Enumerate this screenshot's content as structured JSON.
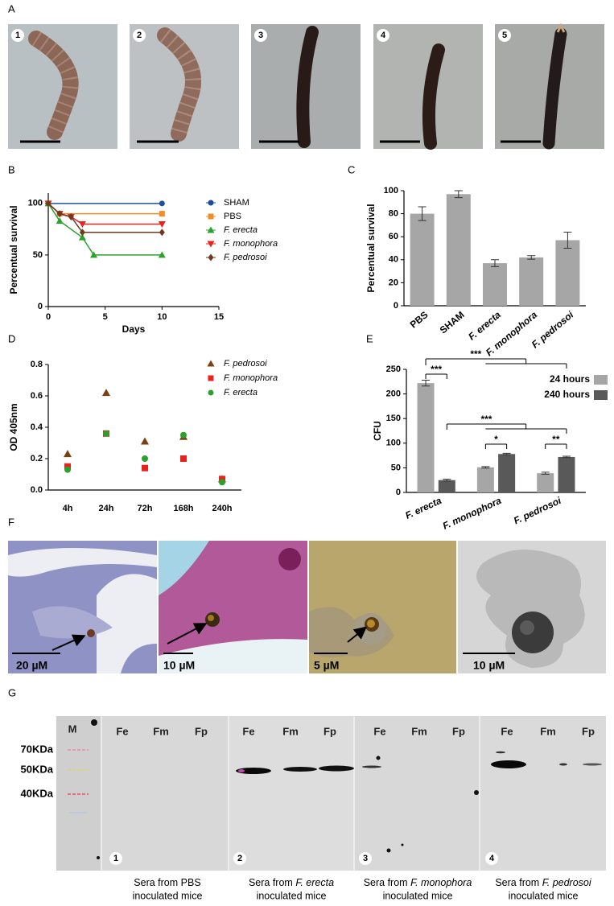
{
  "panel_labels": [
    "A",
    "B",
    "C",
    "D",
    "E",
    "F",
    "G"
  ],
  "panel_a": {
    "numbers": [
      "1",
      "2",
      "3",
      "4",
      "5"
    ]
  },
  "chart_data": [
    {
      "type": "line",
      "xlabel": "Days",
      "ylabel": "Percentual survival",
      "xlim": [
        0,
        15
      ],
      "xticks": [
        0,
        5,
        10,
        15
      ],
      "ylim": [
        0,
        110
      ],
      "yticks": [
        0,
        50,
        100
      ],
      "legend": "upper right",
      "series": [
        {
          "name": "SHAM",
          "color": "#1f4e9c",
          "marker": "circle",
          "x": [
            0,
            10
          ],
          "values": [
            100,
            100
          ]
        },
        {
          "name": "PBS",
          "color": "#f28c28",
          "marker": "square",
          "x": [
            0,
            1,
            10
          ],
          "values": [
            100,
            90,
            90
          ]
        },
        {
          "name": "F. erecta",
          "color": "#2ca02c",
          "marker": "triangle-up",
          "x": [
            0,
            1,
            3,
            4,
            10
          ],
          "values": [
            100,
            83,
            67,
            50,
            50
          ]
        },
        {
          "name": "F. monophora",
          "color": "#e8231e",
          "marker": "triangle-down",
          "x": [
            0,
            1,
            2,
            3,
            10
          ],
          "values": [
            100,
            90,
            87,
            80,
            80
          ]
        },
        {
          "name": "F. pedrosoi",
          "color": "#6b3a1f",
          "marker": "diamond",
          "x": [
            0,
            1,
            2,
            3,
            10
          ],
          "values": [
            100,
            90,
            87,
            72,
            72
          ]
        }
      ]
    },
    {
      "type": "bar",
      "ylabel": "Percentual survival",
      "categories": [
        "PBS",
        "SHAM",
        "F. erecta",
        "F. monophora",
        "F. pedrosoi"
      ],
      "values": [
        80,
        97,
        37,
        42,
        57
      ],
      "errors": [
        6,
        3,
        3,
        1.5,
        7
      ],
      "color": "#a6a6a6",
      "ylim": [
        0,
        100
      ],
      "yticks": [
        0,
        20,
        40,
        60,
        80,
        100
      ]
    },
    {
      "type": "scatter",
      "ylabel": "OD 405nm",
      "categories": [
        "4h",
        "24h",
        "72h",
        "168h",
        "240h"
      ],
      "ylim": [
        0,
        0.8
      ],
      "yticks": [
        {
          "value": 0,
          "label": "0.0"
        },
        0.2,
        0.4,
        0.6,
        0.8
      ],
      "legend": "upper right",
      "series": [
        {
          "name": "F. pedrosoi",
          "color": "#7b3f12",
          "marker": "triangle-up",
          "values": [
            0.23,
            0.62,
            0.31,
            0.34,
            0.07
          ]
        },
        {
          "name": "F. monophora",
          "color": "#e8231e",
          "marker": "square",
          "values": [
            0.15,
            0.36,
            0.14,
            0.2,
            0.07
          ]
        },
        {
          "name": "F. erecta",
          "color": "#2ca02c",
          "marker": "circle",
          "values": [
            0.13,
            0.36,
            0.2,
            0.35,
            0.05
          ]
        }
      ]
    },
    {
      "type": "bar",
      "ylabel": "CFU",
      "categories": [
        "F. erecta",
        "F. monophora",
        "F. pedrosoi"
      ],
      "ylim": [
        0,
        250
      ],
      "yticks": [
        0,
        50,
        100,
        150,
        200,
        250
      ],
      "legend": "upper right",
      "series": [
        {
          "name": "24 hours",
          "color": "#a6a6a6",
          "values": [
            222,
            51,
            39
          ],
          "errors": [
            6,
            1.5,
            2
          ]
        },
        {
          "name": "240 hours",
          "color": "#595959",
          "values": [
            25,
            78,
            72
          ],
          "errors": [
            2,
            1.5,
            1.5
          ]
        }
      ],
      "annotations": [
        "***",
        "***",
        "***",
        "*",
        "**"
      ]
    }
  ],
  "panel_f": {
    "scale_labels": [
      "20 µM",
      "10 µM",
      "5 µM",
      "10 µM"
    ]
  },
  "panel_g": {
    "marker_lane": "M",
    "lanes": [
      [
        "Fe",
        "Fm",
        "Fp"
      ],
      [
        "Fe",
        "Fm",
        "Fp"
      ],
      [
        "Fe",
        "Fm",
        "Fp"
      ],
      [
        "Fe",
        "Fm",
        "Fp"
      ]
    ],
    "size_markers": [
      "70KDa",
      "50KDa",
      "40KDa"
    ],
    "numbers": [
      "1",
      "2",
      "3",
      "4"
    ],
    "captions": [
      {
        "prefix": "Sera from",
        "species": "PBS",
        "suffix": "inoculated mice"
      },
      {
        "prefix": "Sera from",
        "species": "F. erecta",
        "suffix": "inoculated mice"
      },
      {
        "prefix": "Sera from",
        "species": "F. monophora",
        "suffix": "inoculated mice"
      },
      {
        "prefix": "Sera from",
        "species": "F. pedrosoi",
        "suffix": "inoculated mice"
      }
    ]
  }
}
